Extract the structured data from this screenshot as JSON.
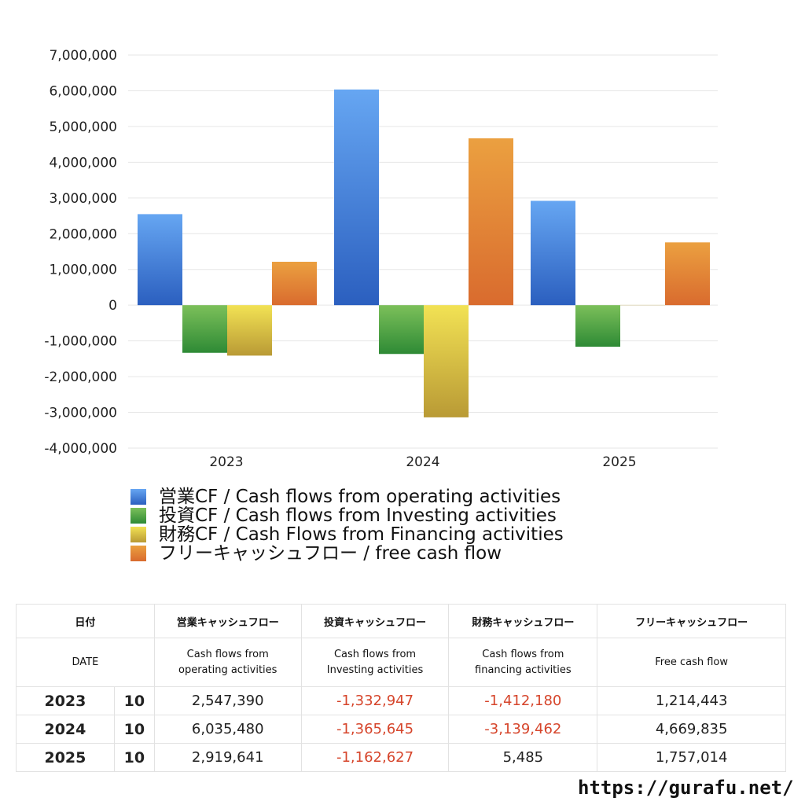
{
  "chart_data": {
    "type": "bar",
    "categories": [
      "2023",
      "2024",
      "2025"
    ],
    "series": [
      {
        "name": "営業CF / Cash flows from operating activities",
        "values": [
          2547390,
          6035480,
          2919641
        ],
        "color_top": "#66a6f2",
        "color_bottom": "#2b5fbf"
      },
      {
        "name": "投資CF / Cash flows from Investing activities",
        "values": [
          -1332947,
          -1365645,
          -1162627
        ],
        "color_top": "#7cc05a",
        "color_bottom": "#2e8a35"
      },
      {
        "name": "財務CF / Cash Flows from Financing activities",
        "values": [
          -1412180,
          -3139462,
          5485
        ],
        "color_top": "#f2e254",
        "color_bottom": "#b99a35"
      },
      {
        "name": "フリーキャッシュフロー / free cash flow",
        "values": [
          1214443,
          4669835,
          1757014
        ],
        "color_top": "#eba040",
        "color_bottom": "#d96b2e"
      }
    ],
    "ylim": [
      -4000000,
      7000000
    ],
    "yticks": [
      "7,000,000",
      "6,000,000",
      "5,000,000",
      "4,000,000",
      "3,000,000",
      "2,000,000",
      "1,000,000",
      "0",
      "-1,000,000",
      "-2,000,000",
      "-3,000,000",
      "-4,000,000"
    ],
    "ytick_values": [
      7000000,
      6000000,
      5000000,
      4000000,
      3000000,
      2000000,
      1000000,
      0,
      -1000000,
      -2000000,
      -3000000,
      -4000000
    ],
    "grid": true,
    "legend_position": "bottom-left"
  },
  "table": {
    "headers_jp": [
      "日付",
      "営業キャッシュフロー",
      "投資キャッシュフロー",
      "財務キャッシュフロー",
      "フリーキャッシュフロー"
    ],
    "headers_en": {
      "date": "DATE",
      "op_1": "Cash flows from",
      "op_2": "operating activities",
      "inv_1": "Cash flows from",
      "inv_2": "Investing activities",
      "fin_1": "Cash flows from",
      "fin_2": "financing activities",
      "free": "Free cash flow"
    },
    "rows": [
      {
        "year": "2023",
        "month": "10",
        "op": "2,547,390",
        "inv": "-1,332,947",
        "fin": "-1,412,180",
        "free": "1,214,443"
      },
      {
        "year": "2024",
        "month": "10",
        "op": "6,035,480",
        "inv": "-1,365,645",
        "fin": "-3,139,462",
        "free": "4,669,835"
      },
      {
        "year": "2025",
        "month": "10",
        "op": "2,919,641",
        "inv": "-1,162,627",
        "fin": "5,485",
        "free": "1,757,014"
      }
    ]
  },
  "footer": {
    "url": "https://gurafu.net/"
  }
}
